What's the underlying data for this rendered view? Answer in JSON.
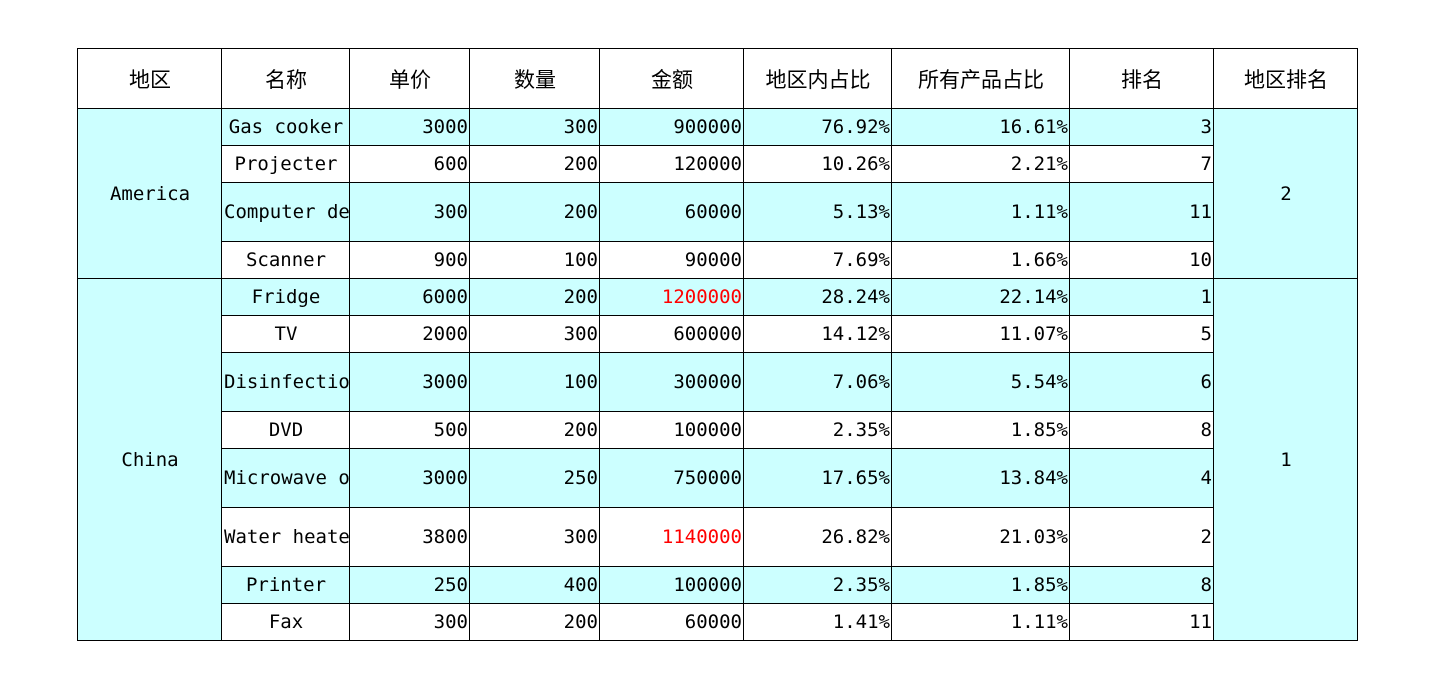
{
  "headers": [
    "地区",
    "名称",
    "单价",
    "数量",
    "金额",
    "地区内占比",
    "所有产品占比",
    "排名",
    "地区排名"
  ],
  "highlight_color": "#ff0000",
  "row_cyan": "#ccffff",
  "regions": [
    {
      "name": "America",
      "region_rank": "2",
      "rows": [
        {
          "name": "Gas cooker",
          "price": "3000",
          "qty": "300",
          "amount": "900000",
          "region_pct": "76.92%",
          "total_pct": "16.61%",
          "rank": "3"
        },
        {
          "name": "Projecter",
          "price": "600",
          "qty": "200",
          "amount": "120000",
          "region_pct": "10.26%",
          "total_pct": "2.21%",
          "rank": "7"
        },
        {
          "name": "Computer dest",
          "price": "300",
          "qty": "200",
          "amount": "60000",
          "region_pct": "5.13%",
          "total_pct": "1.11%",
          "rank": "11"
        },
        {
          "name": "Scanner",
          "price": "900",
          "qty": "100",
          "amount": "90000",
          "region_pct": "7.69%",
          "total_pct": "1.66%",
          "rank": "10"
        }
      ]
    },
    {
      "name": "China",
      "region_rank": "1",
      "rows": [
        {
          "name": "Fridge",
          "price": "6000",
          "qty": "200",
          "amount": "1200000",
          "region_pct": "28.24%",
          "total_pct": "22.14%",
          "rank": "1"
        },
        {
          "name": "TV",
          "price": "2000",
          "qty": "300",
          "amount": "600000",
          "region_pct": "14.12%",
          "total_pct": "11.07%",
          "rank": "5"
        },
        {
          "name": "Disinfection cabinet",
          "price": "3000",
          "qty": "100",
          "amount": "300000",
          "region_pct": "7.06%",
          "total_pct": "5.54%",
          "rank": "6"
        },
        {
          "name": "DVD",
          "price": "500",
          "qty": "200",
          "amount": "100000",
          "region_pct": "2.35%",
          "total_pct": "1.85%",
          "rank": "8"
        },
        {
          "name": "Microwave oven",
          "price": "3000",
          "qty": "250",
          "amount": "750000",
          "region_pct": "17.65%",
          "total_pct": "13.84%",
          "rank": "4"
        },
        {
          "name": "Water heater",
          "price": "3800",
          "qty": "300",
          "amount": "1140000",
          "region_pct": "26.82%",
          "total_pct": "21.03%",
          "rank": "2"
        },
        {
          "name": "Printer",
          "price": "250",
          "qty": "400",
          "amount": "100000",
          "region_pct": "2.35%",
          "total_pct": "1.85%",
          "rank": "8"
        },
        {
          "name": "Fax",
          "price": "300",
          "qty": "200",
          "amount": "60000",
          "region_pct": "1.41%",
          "total_pct": "1.11%",
          "rank": "11"
        }
      ]
    }
  ]
}
